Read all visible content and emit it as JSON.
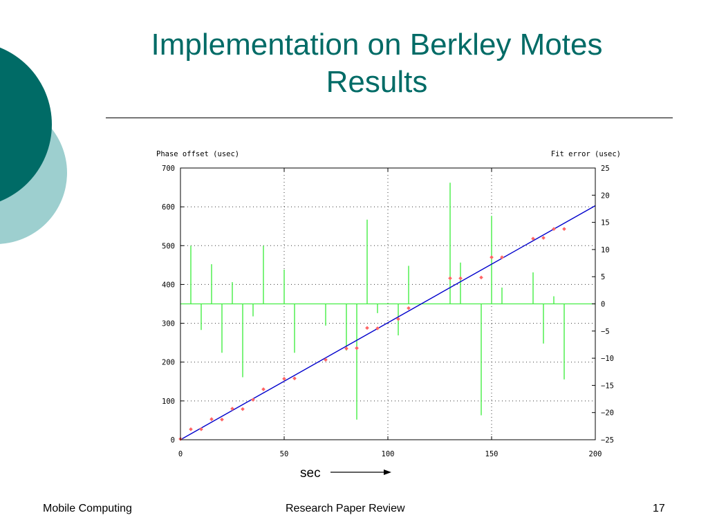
{
  "slide": {
    "title_line1": "Implementation on Berkley Motes",
    "title_line2": "Results",
    "annotation": "sec",
    "footer_left": "Mobile Computing",
    "footer_center": "Research Paper Review",
    "footer_right": "17"
  },
  "colors": {
    "title": "#006b66",
    "deco_dark": "#006b66",
    "deco_light": "#9dcfcf",
    "fit_line": "#0000cc",
    "points": "#ff6666",
    "error_bars": "#44ee44",
    "grid": "#333333"
  },
  "chart_data": {
    "type": "scatter",
    "title": "",
    "xlabel": "",
    "ylabel_left": "Phase offset (usec)",
    "ylabel_right": "Fit error (usec)",
    "xlim": [
      0,
      200
    ],
    "ylim_left": [
      0,
      700
    ],
    "ylim_right": [
      -25,
      25
    ],
    "x_ticks": [
      0,
      50,
      100,
      150,
      200
    ],
    "y_left_ticks": [
      0,
      100,
      200,
      300,
      400,
      500,
      600,
      700
    ],
    "y_right_ticks": [
      -25,
      -20,
      -15,
      -10,
      -5,
      0,
      5,
      10,
      15,
      20,
      25
    ],
    "grid": true,
    "series": [
      {
        "kind": "points",
        "axis": "left",
        "x": [
          0,
          5,
          10,
          15,
          20,
          25,
          30,
          35,
          40,
          50,
          55,
          70,
          80,
          85,
          90,
          95,
          105,
          110,
          130,
          135,
          145,
          150,
          155,
          170,
          175,
          180,
          185
        ],
        "y": [
          2,
          27,
          27,
          53,
          52,
          80,
          79,
          103,
          130,
          157,
          158,
          206,
          235,
          236,
          288,
          287,
          311,
          339,
          416,
          416,
          418,
          470,
          470,
          518,
          520,
          543,
          543
        ]
      },
      {
        "kind": "line",
        "axis": "left",
        "x": [
          0,
          200
        ],
        "y": [
          0,
          603
        ]
      },
      {
        "kind": "impulses",
        "axis": "right",
        "x": [
          5,
          10,
          15,
          20,
          25,
          30,
          35,
          40,
          50,
          55,
          70,
          80,
          85,
          90,
          95,
          105,
          110,
          130,
          135,
          145,
          150,
          155,
          170,
          175,
          180,
          185
        ],
        "y": [
          10.7,
          -4.8,
          7.3,
          -9,
          4,
          -13.5,
          -2.3,
          10.7,
          6.3,
          -9,
          -4,
          -8.6,
          -21.3,
          15.5,
          -1.7,
          -5.8,
          7,
          22.3,
          7.6,
          -20.5,
          16.2,
          3,
          5.8,
          -7.3,
          1.4,
          -13.9
        ]
      }
    ]
  }
}
